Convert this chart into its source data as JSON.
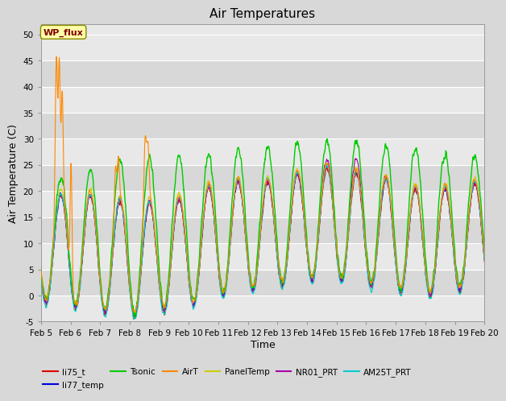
{
  "title": "Air Temperatures",
  "xlabel": "Time",
  "ylabel": "Air Temperature (C)",
  "ylim": [
    -5,
    52
  ],
  "yticks": [
    -5,
    0,
    5,
    10,
    15,
    20,
    25,
    30,
    35,
    40,
    45,
    50
  ],
  "x_start": 5.0,
  "x_end": 20.0,
  "xtick_positions": [
    5,
    6,
    7,
    8,
    9,
    10,
    11,
    12,
    13,
    14,
    15,
    16,
    17,
    18,
    19,
    20
  ],
  "xtick_labels": [
    "Feb 5",
    "Feb 6",
    "Feb 7",
    "Feb 8",
    "Feb 9",
    "Feb 10",
    "Feb 11",
    "Feb 12",
    "Feb 13",
    "Feb 14",
    "Feb 15",
    "Feb 16",
    "Feb 17",
    "Feb 18",
    "Feb 19",
    "Feb 20"
  ],
  "series": {
    "li75_t": {
      "color": "#dd0000",
      "lw": 0.8
    },
    "li77_temp": {
      "color": "#0000dd",
      "lw": 0.8
    },
    "Tsonic": {
      "color": "#00cc00",
      "lw": 1.0
    },
    "AirT": {
      "color": "#ff8800",
      "lw": 0.8
    },
    "PanelTemp": {
      "color": "#cccc00",
      "lw": 0.8
    },
    "NR01_PRT": {
      "color": "#aa00aa",
      "lw": 0.8
    },
    "AM25T_PRT": {
      "color": "#00cccc",
      "lw": 0.8
    }
  },
  "wp_flux_label": "WP_flux",
  "background_color": "#d8d8d8",
  "plot_bg_color": "#e8e8e8",
  "band_light": "#e8e8e8",
  "band_dark": "#d8d8d8",
  "grid_color": "#ffffff",
  "title_fontsize": 11,
  "axis_label_fontsize": 9,
  "tick_fontsize": 7.5
}
